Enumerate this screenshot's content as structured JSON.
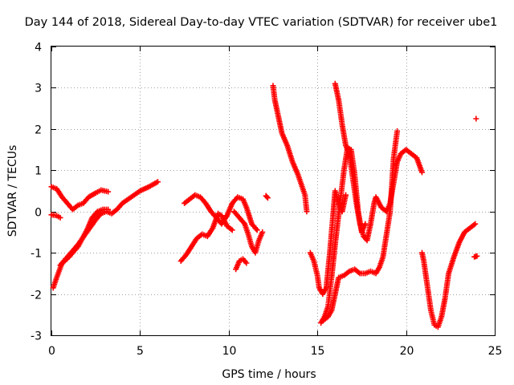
{
  "chart_data": {
    "type": "scatter",
    "title": "Day 144 of 2018, Sidereal Day-to-day VTEC variation (SDTVAR) for receiver ube1",
    "xlabel": "GPS time / hours",
    "ylabel": "SDTVAR / TECUs",
    "xlim": [
      0,
      25
    ],
    "ylim": [
      -3,
      4
    ],
    "xticks": [
      "0",
      "5",
      "10",
      "15",
      "20",
      "25"
    ],
    "yticks": [
      "-3",
      "-2",
      "-1",
      "0",
      "1",
      "2",
      "3",
      "4"
    ],
    "grid": true,
    "marker": "plus",
    "color": "#ff0000",
    "series": [
      {
        "name": "seg-a",
        "points": [
          [
            0.0,
            0.6
          ],
          [
            0.3,
            0.55
          ],
          [
            0.6,
            0.35
          ],
          [
            0.9,
            0.2
          ],
          [
            1.2,
            0.05
          ],
          [
            1.5,
            0.15
          ],
          [
            1.8,
            0.2
          ],
          [
            2.1,
            0.35
          ],
          [
            2.5,
            0.45
          ],
          [
            2.8,
            0.52
          ],
          [
            3.2,
            0.48
          ]
        ]
      },
      {
        "name": "seg-b",
        "points": [
          [
            0.0,
            -0.08
          ],
          [
            0.3,
            -0.1
          ],
          [
            0.5,
            -0.15
          ]
        ]
      },
      {
        "name": "seg-c",
        "points": [
          [
            0.1,
            -1.85
          ],
          [
            0.3,
            -1.6
          ],
          [
            0.6,
            -1.25
          ],
          [
            1.0,
            -1.05
          ],
          [
            1.5,
            -0.8
          ],
          [
            2.0,
            -0.5
          ],
          [
            2.5,
            -0.2
          ],
          [
            2.8,
            -0.05
          ],
          [
            3.1,
            0.0
          ],
          [
            3.4,
            -0.05
          ],
          [
            3.7,
            0.05
          ],
          [
            4.0,
            0.2
          ],
          [
            4.5,
            0.35
          ],
          [
            5.0,
            0.5
          ],
          [
            5.5,
            0.6
          ],
          [
            6.0,
            0.72
          ]
        ]
      },
      {
        "name": "seg-d",
        "points": [
          [
            0.5,
            -1.3
          ],
          [
            1.0,
            -1.1
          ],
          [
            1.5,
            -0.85
          ],
          [
            2.0,
            -0.45
          ],
          [
            2.3,
            -0.15
          ],
          [
            2.6,
            0.0
          ],
          [
            2.9,
            0.05
          ],
          [
            3.2,
            0.05
          ]
        ]
      },
      {
        "name": "seg-e",
        "points": [
          [
            7.3,
            -1.2
          ],
          [
            7.6,
            -1.05
          ],
          [
            7.9,
            -0.85
          ],
          [
            8.2,
            -0.65
          ],
          [
            8.5,
            -0.55
          ],
          [
            8.8,
            -0.6
          ],
          [
            9.1,
            -0.4
          ],
          [
            9.4,
            -0.05
          ],
          [
            9.6,
            -0.1
          ],
          [
            9.9,
            -0.35
          ],
          [
            10.2,
            -0.45
          ]
        ]
      },
      {
        "name": "seg-f",
        "points": [
          [
            7.5,
            0.2
          ],
          [
            7.8,
            0.3
          ],
          [
            8.1,
            0.4
          ],
          [
            8.4,
            0.35
          ],
          [
            8.7,
            0.2
          ],
          [
            9.0,
            0.0
          ],
          [
            9.3,
            -0.15
          ],
          [
            9.6,
            -0.3
          ],
          [
            9.9,
            -0.1
          ],
          [
            10.2,
            0.2
          ],
          [
            10.5,
            0.35
          ],
          [
            10.8,
            0.3
          ],
          [
            11.0,
            0.1
          ],
          [
            11.3,
            -0.3
          ],
          [
            11.6,
            -0.45
          ]
        ]
      },
      {
        "name": "seg-g",
        "points": [
          [
            10.4,
            -1.4
          ],
          [
            10.6,
            -1.2
          ],
          [
            10.8,
            -1.15
          ],
          [
            11.0,
            -1.25
          ]
        ]
      },
      {
        "name": "seg-h",
        "points": [
          [
            10.3,
            0.0
          ],
          [
            10.6,
            -0.15
          ],
          [
            10.9,
            -0.3
          ],
          [
            11.1,
            -0.55
          ],
          [
            11.3,
            -0.85
          ],
          [
            11.5,
            -1.0
          ],
          [
            11.7,
            -0.7
          ],
          [
            11.9,
            -0.5
          ]
        ]
      },
      {
        "name": "seg-i",
        "points": [
          [
            12.1,
            0.38
          ],
          [
            12.2,
            0.33
          ]
        ]
      },
      {
        "name": "seg-j",
        "points": [
          [
            12.5,
            3.05
          ],
          [
            12.6,
            2.7
          ],
          [
            12.8,
            2.3
          ],
          [
            13.0,
            1.9
          ],
          [
            13.3,
            1.6
          ],
          [
            13.6,
            1.2
          ],
          [
            13.9,
            0.9
          ],
          [
            14.1,
            0.65
          ],
          [
            14.3,
            0.4
          ],
          [
            14.4,
            0.0
          ]
        ]
      },
      {
        "name": "seg-k",
        "points": [
          [
            14.6,
            -1.0
          ],
          [
            14.8,
            -1.2
          ],
          [
            15.0,
            -1.55
          ],
          [
            15.1,
            -1.85
          ],
          [
            15.3,
            -2.0
          ],
          [
            15.5,
            -1.85
          ],
          [
            15.7,
            -1.0
          ],
          [
            15.9,
            0.0
          ],
          [
            16.0,
            0.5
          ],
          [
            16.2,
            0.2
          ],
          [
            16.4,
            0.0
          ],
          [
            16.6,
            0.4
          ]
        ]
      },
      {
        "name": "seg-l",
        "points": [
          [
            16.0,
            3.1
          ],
          [
            16.2,
            2.7
          ],
          [
            16.4,
            2.1
          ],
          [
            16.6,
            1.6
          ],
          [
            16.8,
            1.4
          ],
          [
            17.0,
            0.8
          ],
          [
            17.2,
            0.2
          ],
          [
            17.4,
            -0.3
          ],
          [
            17.6,
            -0.6
          ],
          [
            17.8,
            -0.7
          ],
          [
            18.0,
            -0.3
          ],
          [
            18.2,
            0.2
          ],
          [
            18.3,
            0.35
          ],
          [
            18.6,
            0.1
          ],
          [
            18.9,
            0.0
          ],
          [
            19.1,
            0.2
          ],
          [
            19.3,
            0.7
          ],
          [
            19.5,
            1.2
          ],
          [
            19.7,
            1.4
          ],
          [
            20.0,
            1.5
          ],
          [
            20.3,
            1.4
          ],
          [
            20.6,
            1.3
          ],
          [
            20.9,
            0.95
          ]
        ]
      },
      {
        "name": "seg-m",
        "points": [
          [
            15.3,
            -2.65
          ],
          [
            15.6,
            -2.55
          ],
          [
            15.8,
            -2.4
          ],
          [
            16.0,
            -2.0
          ],
          [
            16.2,
            -1.6
          ],
          [
            16.5,
            -1.55
          ],
          [
            16.8,
            -1.45
          ],
          [
            17.1,
            -1.4
          ],
          [
            17.4,
            -1.5
          ],
          [
            17.7,
            -1.5
          ],
          [
            18.0,
            -1.45
          ],
          [
            18.3,
            -1.5
          ],
          [
            18.5,
            -1.35
          ],
          [
            18.7,
            -1.1
          ],
          [
            18.9,
            -0.55
          ],
          [
            19.1,
            0.0
          ],
          [
            19.3,
            1.3
          ],
          [
            19.5,
            1.95
          ]
        ]
      },
      {
        "name": "seg-n",
        "points": [
          [
            15.2,
            -2.7
          ],
          [
            15.4,
            -2.55
          ],
          [
            15.6,
            -2.3
          ],
          [
            15.8,
            -1.6
          ],
          [
            16.0,
            -0.8
          ],
          [
            16.3,
            0.3
          ],
          [
            16.5,
            1.0
          ],
          [
            16.7,
            1.55
          ],
          [
            16.9,
            1.5
          ],
          [
            17.1,
            0.9
          ],
          [
            17.3,
            0.0
          ],
          [
            17.5,
            -0.5
          ],
          [
            17.7,
            -0.3
          ]
        ]
      },
      {
        "name": "seg-o",
        "points": [
          [
            20.9,
            -1.0
          ],
          [
            21.0,
            -1.2
          ],
          [
            21.2,
            -1.8
          ],
          [
            21.4,
            -2.4
          ],
          [
            21.6,
            -2.75
          ],
          [
            21.8,
            -2.8
          ],
          [
            22.0,
            -2.55
          ],
          [
            22.2,
            -2.1
          ],
          [
            22.4,
            -1.5
          ],
          [
            22.7,
            -1.1
          ],
          [
            23.0,
            -0.75
          ],
          [
            23.3,
            -0.5
          ],
          [
            23.6,
            -0.4
          ],
          [
            23.9,
            -0.3
          ]
        ]
      },
      {
        "name": "seg-p",
        "points": [
          [
            23.85,
            -1.1
          ],
          [
            24.0,
            -1.08
          ]
        ]
      },
      {
        "name": "seg-q",
        "points": [
          [
            23.95,
            2.25
          ]
        ]
      }
    ]
  }
}
